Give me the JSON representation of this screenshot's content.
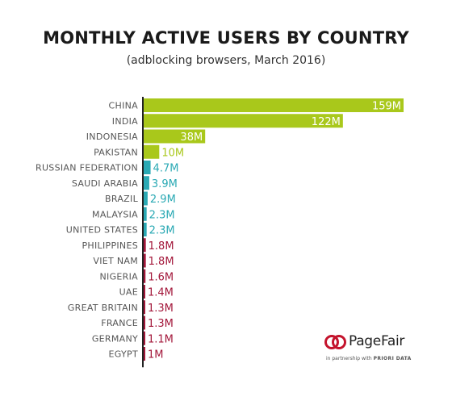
{
  "title": "MONTHLY ACTIVE USERS BY COUNTRY",
  "subtitle": "(adblocking browsers, March 2016)",
  "logo": {
    "brand": "PageFair",
    "partner_text": "in partnership with",
    "partner_name": "PRIORI DATA"
  },
  "colors": {
    "green": "#a9c81b",
    "teal": "#2aa9b4",
    "crimson": "#a3173a",
    "axis": "#222222"
  },
  "chart_data": {
    "type": "bar",
    "orientation": "horizontal",
    "title": "MONTHLY ACTIVE USERS BY COUNTRY",
    "subtitle": "(adblocking browsers, March 2016)",
    "unit": "M",
    "categories": [
      "CHINA",
      "INDIA",
      "INDONESIA",
      "PAKISTAN",
      "RUSSIAN FEDERATION",
      "SAUDI ARABIA",
      "BRAZIL",
      "MALAYSIA",
      "UNITED STATES",
      "PHILIPPINES",
      "VIET NAM",
      "NIGERIA",
      "UAE",
      "GREAT BRITAIN",
      "FRANCE",
      "GERMANY",
      "EGYPT"
    ],
    "values": [
      159,
      122,
      38,
      10,
      4.7,
      3.9,
      2.9,
      2.3,
      2.3,
      1.8,
      1.8,
      1.6,
      1.4,
      1.3,
      1.3,
      1.1,
      1
    ],
    "labels": [
      "159M",
      "122M",
      "38M",
      "10M",
      "4.7M",
      "3.9M",
      "2.9M",
      "2.3M",
      "2.3M",
      "1.8M",
      "1.8M",
      "1.6M",
      "1.4M",
      "1.3M",
      "1.3M",
      "1.1M",
      "1M"
    ],
    "tiers": [
      "green",
      "green",
      "green",
      "green",
      "teal",
      "teal",
      "teal",
      "teal",
      "teal",
      "crimson",
      "crimson",
      "crimson",
      "crimson",
      "crimson",
      "crimson",
      "crimson",
      "crimson"
    ],
    "xlim": [
      0,
      159
    ],
    "grid": false,
    "legend": "none"
  }
}
